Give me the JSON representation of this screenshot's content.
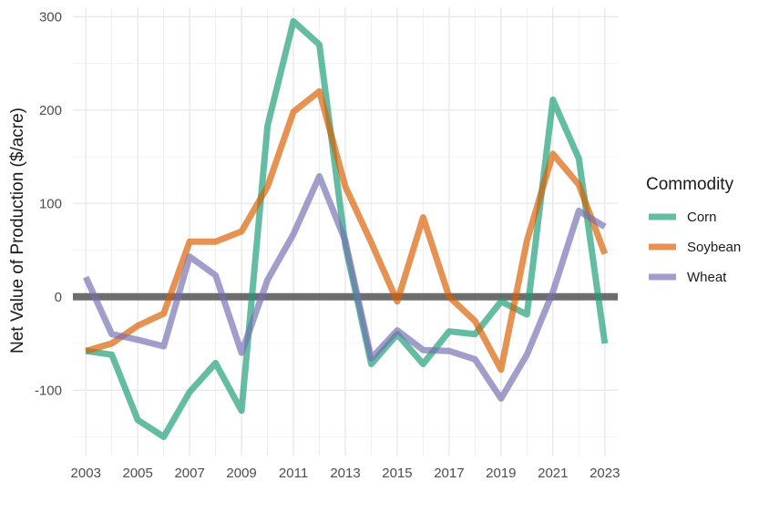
{
  "chart_data": {
    "type": "line",
    "title": "",
    "xlabel": "",
    "ylabel": "Net Value of Production ($/acre)",
    "x": [
      2003,
      2004,
      2005,
      2006,
      2007,
      2008,
      2009,
      2010,
      2011,
      2012,
      2013,
      2014,
      2015,
      2016,
      2017,
      2018,
      2019,
      2020,
      2021,
      2022,
      2023
    ],
    "xticks": [
      "2003",
      "2005",
      "2007",
      "2009",
      "2011",
      "2013",
      "2015",
      "2017",
      "2019",
      "2021",
      "2023"
    ],
    "yticks": [
      "-100",
      "0",
      "100",
      "200",
      "300"
    ],
    "xlim": [
      2002.5,
      2023.5
    ],
    "ylim": [
      -170,
      310
    ],
    "grid": true,
    "reference_line": {
      "y": 0,
      "color": "#555555"
    },
    "legend": {
      "title": "Commodity",
      "position": "right"
    },
    "series": [
      {
        "name": "Corn",
        "color": "#1b9e77",
        "values": [
          -58,
          -62,
          -132,
          -150,
          -102,
          -71,
          -122,
          183,
          295,
          270,
          55,
          -72,
          -40,
          -72,
          -37,
          -40,
          -5,
          -19,
          211,
          148,
          -50
        ]
      },
      {
        "name": "Soybean",
        "color": "#d95f02",
        "values": [
          -58,
          -50,
          -31,
          -18,
          59,
          59,
          70,
          118,
          198,
          220,
          118,
          58,
          -5,
          85,
          0,
          -26,
          -78,
          60,
          153,
          120,
          46
        ]
      },
      {
        "name": "Wheat",
        "color": "#7570b3",
        "values": [
          21,
          -40,
          -46,
          -53,
          43,
          23,
          -60,
          18,
          67,
          129,
          60,
          -66,
          -36,
          -57,
          -58,
          -67,
          -109,
          -62,
          5,
          92,
          75
        ]
      }
    ]
  }
}
